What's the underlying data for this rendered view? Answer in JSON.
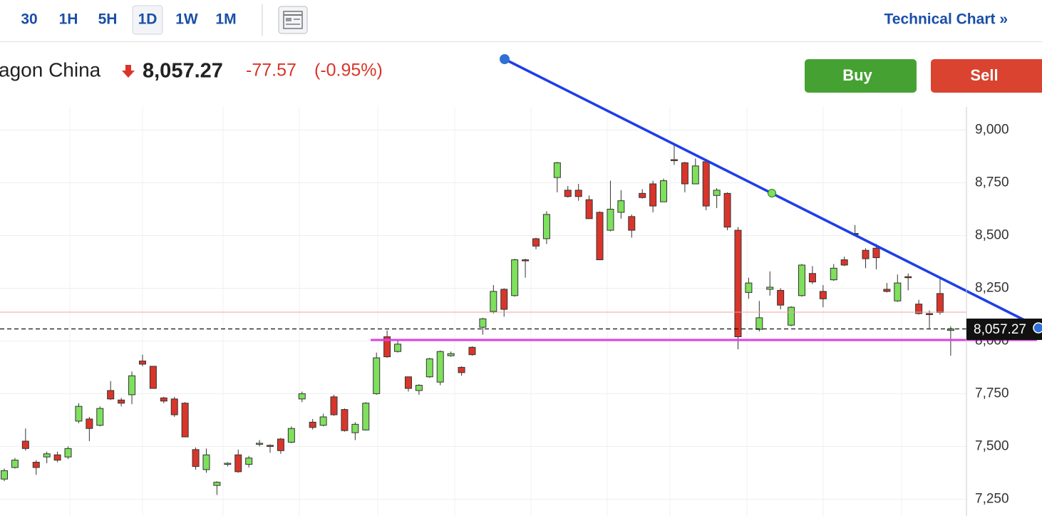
{
  "header": {
    "intervals": [
      "30",
      "1H",
      "5H",
      "1D",
      "1W",
      "1M"
    ],
    "technical_chart": "Technical Chart »",
    "name": "agon China",
    "price": "8,057.27",
    "change": "-77.57",
    "change_pct": "(-0.95%)",
    "buy": "Buy",
    "sell": "Sell"
  },
  "chart_data": {
    "type": "candlestick",
    "categories": [
      null,
      null,
      null,
      null,
      null,
      null,
      null,
      null,
      null,
      null,
      null,
      null,
      null,
      null,
      null,
      null,
      null,
      null,
      null,
      null,
      null,
      null,
      null,
      null,
      null,
      null,
      null,
      null,
      null,
      null,
      null,
      null,
      null,
      null,
      null,
      null,
      null,
      null,
      null,
      null,
      null,
      null,
      null,
      null,
      null,
      null,
      null,
      null,
      null,
      null,
      null,
      null,
      null,
      null,
      null,
      null,
      null,
      null,
      null,
      null,
      null,
      null,
      null,
      null,
      null,
      null,
      null,
      null,
      null,
      null,
      null,
      null,
      null,
      null,
      null,
      null,
      null,
      null,
      null,
      null,
      null,
      null,
      null,
      null,
      null,
      null,
      null,
      null,
      null,
      null
    ],
    "series": [
      {
        "open": [
          7345,
          7400,
          7525,
          7425,
          7450,
          7460,
          7450,
          7620,
          7630,
          7600,
          7765,
          7720,
          7745,
          7905,
          7880,
          7730,
          7725,
          7705,
          7485,
          7390,
          7315,
          7415,
          7460,
          7415,
          7510,
          7505,
          7535,
          7520,
          7725,
          7615,
          7600,
          7735,
          7675,
          7565,
          7578,
          7750,
          8020,
          7950,
          7830,
          7765,
          7830,
          7805,
          7930,
          7875,
          7970,
          8065,
          8140,
          8245,
          8215,
          8385,
          8485,
          8485,
          8775,
          8715,
          8715,
          8670,
          8610,
          8525,
          8610,
          8590,
          8700,
          8745,
          8660,
          8860,
          8845,
          8745,
          8850,
          8690,
          8700,
          8525,
          8230,
          8055,
          8245,
          8240,
          8075,
          8215,
          8320,
          8235,
          8290,
          8385,
          8510,
          8430,
          8440,
          8245,
          8190,
          8305,
          8175,
          8130,
          8225,
          8050
        ],
        "high": [
          7395,
          7445,
          7585,
          7435,
          7475,
          7475,
          7500,
          7705,
          7640,
          7690,
          7810,
          7730,
          7855,
          7935,
          7880,
          7735,
          7735,
          7710,
          7495,
          7490,
          7335,
          7425,
          7485,
          7455,
          7530,
          7510,
          7540,
          7595,
          7760,
          7630,
          7655,
          7745,
          7680,
          7615,
          7710,
          7945,
          8050,
          8000,
          7830,
          7795,
          7920,
          7955,
          7950,
          7880,
          7975,
          8110,
          8265,
          8250,
          8390,
          8390,
          8490,
          8615,
          8850,
          8735,
          8745,
          8690,
          8615,
          8760,
          8715,
          8600,
          8720,
          8760,
          8770,
          8935,
          8850,
          8865,
          8855,
          8725,
          8705,
          8540,
          8300,
          8190,
          8330,
          8250,
          8165,
          8365,
          8355,
          8265,
          8365,
          8400,
          8550,
          8440,
          8460,
          8275,
          8315,
          8320,
          8195,
          8145,
          8295,
          8070
        ],
        "low": [
          7335,
          7395,
          7480,
          7365,
          7420,
          7425,
          7440,
          7610,
          7525,
          7595,
          7720,
          7690,
          7700,
          7880,
          7775,
          7705,
          7640,
          7545,
          7390,
          7375,
          7270,
          7405,
          7375,
          7400,
          7500,
          7470,
          7465,
          7515,
          7710,
          7580,
          7595,
          7645,
          7570,
          7530,
          7575,
          7745,
          7920,
          7945,
          7760,
          7745,
          7825,
          7790,
          7925,
          7835,
          7930,
          8030,
          8130,
          8115,
          8210,
          8300,
          8435,
          8460,
          8705,
          8680,
          8665,
          8580,
          8385,
          8520,
          8580,
          8490,
          8675,
          8610,
          8660,
          8835,
          8705,
          8745,
          8620,
          8630,
          8525,
          7960,
          8200,
          8045,
          8215,
          8150,
          8070,
          8210,
          8270,
          8160,
          8285,
          8355,
          8500,
          8345,
          8340,
          8230,
          8185,
          8240,
          8125,
          8060,
          8125,
          7930
        ],
        "close": [
          7385,
          7435,
          7490,
          7400,
          7465,
          7435,
          7490,
          7690,
          7585,
          7680,
          7725,
          7705,
          7835,
          7890,
          7775,
          7715,
          7650,
          7545,
          7405,
          7460,
          7330,
          7420,
          7380,
          7445,
          7515,
          7500,
          7480,
          7585,
          7750,
          7590,
          7640,
          7650,
          7575,
          7605,
          7705,
          7920,
          7925,
          7985,
          7775,
          7790,
          7915,
          7950,
          7940,
          7850,
          7935,
          8105,
          8235,
          8150,
          8385,
          8380,
          8450,
          8600,
          8845,
          8685,
          8685,
          8580,
          8385,
          8625,
          8665,
          8525,
          8680,
          8640,
          8760,
          8855,
          8745,
          8830,
          8640,
          8715,
          8540,
          8020,
          8275,
          8110,
          8255,
          8170,
          8160,
          8360,
          8280,
          8200,
          8345,
          8360,
          8505,
          8390,
          8395,
          8235,
          8275,
          8300,
          8130,
          8125,
          8135,
          8057.27
        ]
      }
    ],
    "up_color": "#7ee05c",
    "down_color": "#d9352a",
    "ylim": [
      7170,
      9110
    ],
    "yticks": [
      {
        "value": 7250,
        "label": "7,250"
      },
      {
        "value": 7500,
        "label": "7,500"
      },
      {
        "value": 7750,
        "label": "7,750"
      },
      {
        "value": 8000,
        "label": "8,000"
      },
      {
        "value": 8250,
        "label": "8,250"
      },
      {
        "value": 8500,
        "label": "8,500"
      },
      {
        "value": 8750,
        "label": "8,750"
      },
      {
        "value": 9000,
        "label": "9,000"
      }
    ],
    "grid": true
  }
}
